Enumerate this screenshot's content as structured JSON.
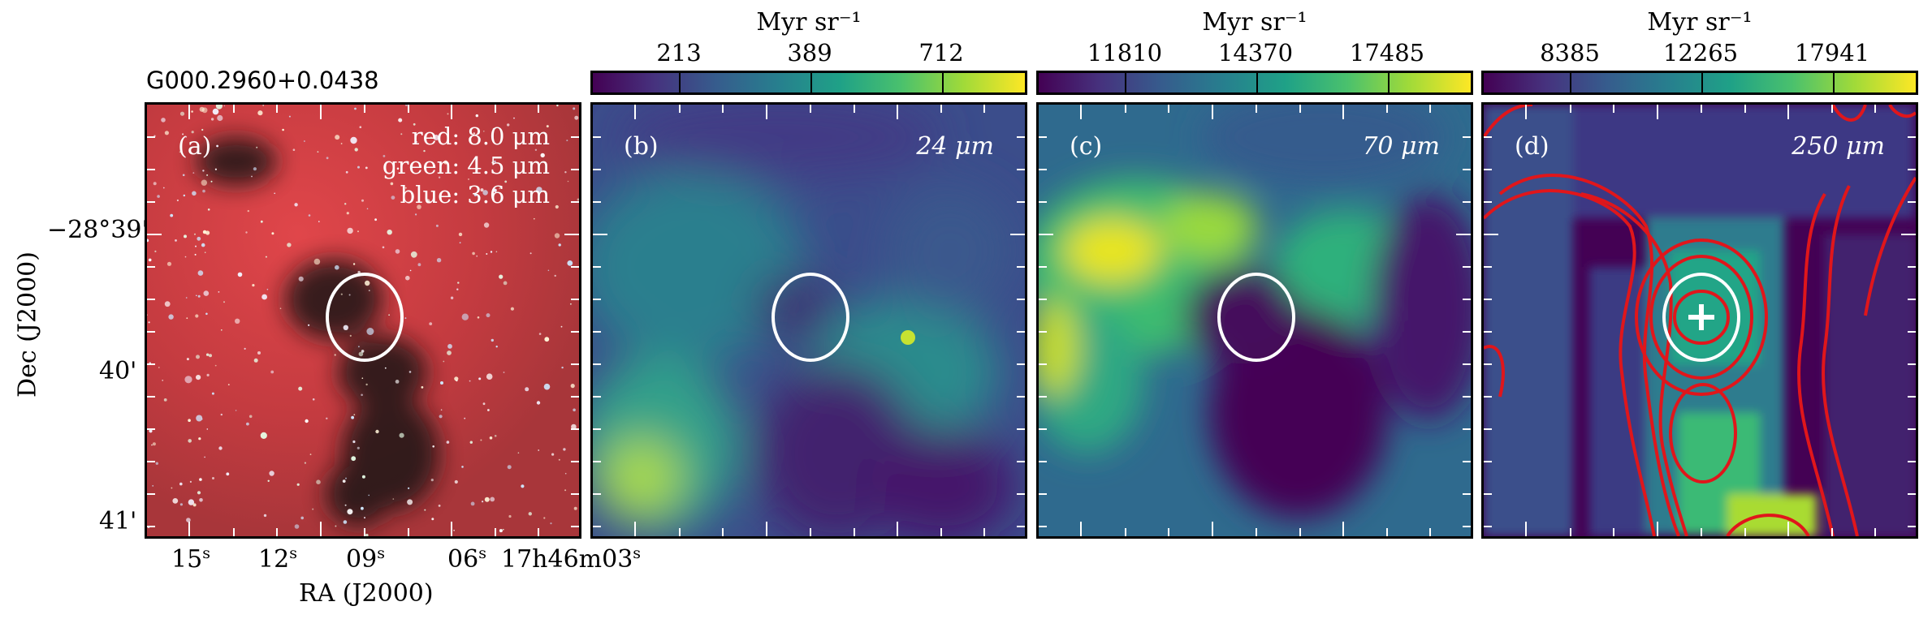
{
  "source_name": "G000.2960+0.0438",
  "colorbar_unit": "Myr sr⁻¹",
  "panels": [
    {
      "id": "a",
      "label": "(a)",
      "channels": [
        "red: 8.0 μm",
        "green: 4.5 μm",
        "blue: 3.6 μm"
      ]
    },
    {
      "id": "b",
      "label": "(b)",
      "wavelength": "24 μm",
      "colorbar": [
        "213",
        "389",
        "712"
      ]
    },
    {
      "id": "c",
      "label": "(c)",
      "wavelength": "70 μm",
      "colorbar": [
        "11810",
        "14370",
        "17485"
      ]
    },
    {
      "id": "d",
      "label": "(d)",
      "wavelength": "250 μm",
      "colorbar": [
        "8385",
        "12265",
        "17941"
      ]
    }
  ],
  "axes": {
    "xlabel": "RA (J2000)",
    "ylabel": "Dec (J2000)",
    "xticks": [
      {
        "value": "15",
        "unit": "s"
      },
      {
        "value": "12",
        "unit": "s"
      },
      {
        "value": "09",
        "unit": "s"
      },
      {
        "value": "06",
        "unit": "s"
      },
      {
        "value": "17h46m03",
        "unit": "s"
      }
    ],
    "yticks": [
      "−28°39'",
      "40'",
      "41'"
    ]
  },
  "colors": {
    "ellipse": "#ffffff",
    "contour": "#e0161b",
    "viridis": [
      "#440154",
      "#46327e",
      "#365c8d",
      "#277f8e",
      "#1fa187",
      "#4ac16d",
      "#a0da39",
      "#fde725"
    ]
  }
}
